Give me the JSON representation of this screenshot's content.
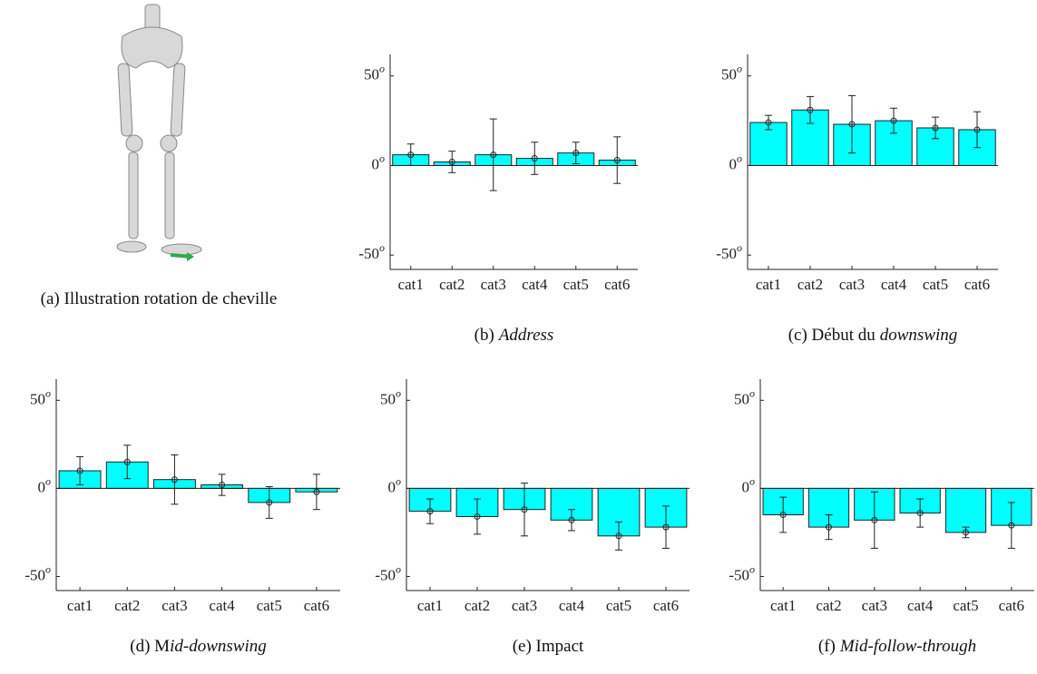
{
  "illustration": {
    "caption": "(a) Illustration rotation de cheville"
  },
  "chart_data": [
    {
      "type": "bar",
      "caption": [
        {
          "text": "(b)"
        },
        {
          "text": "Address",
          "italic": true
        }
      ],
      "categories": [
        "cat1",
        "cat2",
        "cat3",
        "cat4",
        "cat5",
        "cat6"
      ],
      "values": [
        6,
        2,
        6,
        4,
        7,
        3
      ],
      "errors": [
        6,
        6,
        20,
        9,
        6,
        13
      ],
      "color": "#00ffff",
      "ylim": [
        -58,
        62
      ],
      "yticks": [
        -50,
        0,
        50
      ],
      "tick_suffix": "o"
    },
    {
      "type": "bar",
      "caption": [
        {
          "text": "(c) Début du"
        },
        {
          "text": "downswing",
          "italic": true
        }
      ],
      "categories": [
        "cat1",
        "cat2",
        "cat3",
        "cat4",
        "cat5",
        "cat6"
      ],
      "values": [
        24,
        31,
        23,
        25,
        21,
        20
      ],
      "errors": [
        4,
        7.5,
        16,
        7,
        6,
        10
      ],
      "color": "#00ffff",
      "ylim": [
        -58,
        62
      ],
      "yticks": [
        -50,
        0,
        50
      ],
      "tick_suffix": "o"
    },
    {
      "type": "bar",
      "caption": [
        {
          "text": "(d) M"
        },
        {
          "text": "id-downswing",
          "italic": true
        }
      ],
      "categories": [
        "cat1",
        "cat2",
        "cat3",
        "cat4",
        "cat5",
        "cat6"
      ],
      "values": [
        10,
        15,
        5,
        2,
        -8,
        -2
      ],
      "errors": [
        8,
        9.5,
        14,
        6,
        9,
        10
      ],
      "color": "#00ffff",
      "ylim": [
        -58,
        62
      ],
      "yticks": [
        -50,
        0,
        50
      ],
      "tick_suffix": "o"
    },
    {
      "type": "bar",
      "caption": [
        {
          "text": "(e) Impact"
        }
      ],
      "categories": [
        "cat1",
        "cat2",
        "cat3",
        "cat4",
        "cat5",
        "cat6"
      ],
      "values": [
        -13,
        -16,
        -12,
        -18,
        -27,
        -22
      ],
      "errors": [
        7,
        10,
        15,
        6,
        8,
        12
      ],
      "color": "#00ffff",
      "ylim": [
        -58,
        62
      ],
      "yticks": [
        -50,
        0,
        50
      ],
      "tick_suffix": "o"
    },
    {
      "type": "bar",
      "caption": [
        {
          "text": "(f)"
        },
        {
          "text": "Mid-follow-through",
          "italic": true
        }
      ],
      "categories": [
        "cat1",
        "cat2",
        "cat3",
        "cat4",
        "cat5",
        "cat6"
      ],
      "values": [
        -15,
        -22,
        -18,
        -14,
        -25,
        -21
      ],
      "errors": [
        10,
        7,
        16,
        8,
        3,
        13
      ],
      "color": "#00ffff",
      "ylim": [
        -58,
        62
      ],
      "yticks": [
        -50,
        0,
        50
      ],
      "tick_suffix": "o"
    }
  ]
}
